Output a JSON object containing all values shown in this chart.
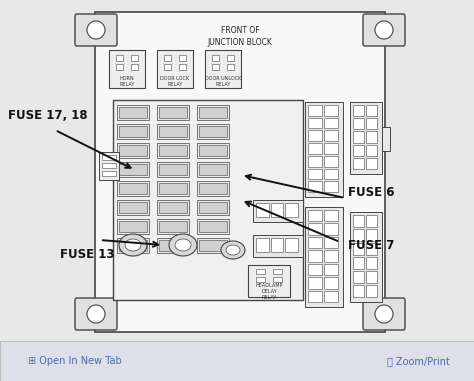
{
  "bg_color": "#e8e8e8",
  "board_bg": "#f8f8f8",
  "board_border": "#555555",
  "fuse_fill": "#e0e0e0",
  "fuse_inner": "#c8c8c8",
  "slot_fill": "#ffffff",
  "title": "FRONT OF\nJUNCTION BLOCK",
  "labels": {
    "fuse_17_18": "FUSE 17, 18",
    "fuse_13": "FUSE 13",
    "fuse_6": "FUSE 6",
    "fuse_7": "FUSE 7"
  },
  "footer_bg": "#dde0e8",
  "footer_text_color": "#4a6aaa",
  "footer_left": "Open In New Tab",
  "footer_right": "Zoom/Print",
  "lc": "#444444"
}
